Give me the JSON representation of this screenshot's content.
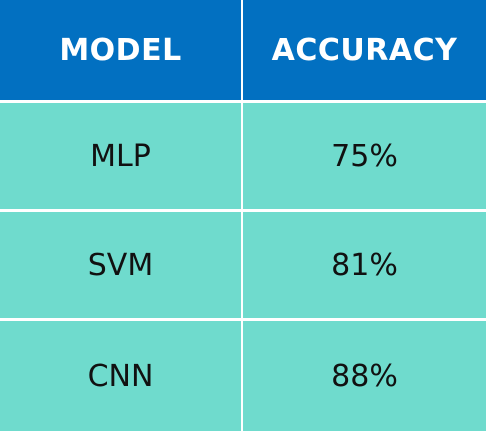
{
  "table": {
    "headers": [
      "MODEL",
      "ACCURACY"
    ],
    "rows": [
      {
        "model": "MLP",
        "accuracy": "75%"
      },
      {
        "model": "SVM",
        "accuracy": "81%"
      },
      {
        "model": "CNN",
        "accuracy": "88%"
      }
    ]
  },
  "colors": {
    "header_bg": "#0270c1",
    "body_bg": "#6fdbcd",
    "header_text": "#ffffff",
    "body_text": "#111111",
    "grid_lines": "#ffffff"
  }
}
